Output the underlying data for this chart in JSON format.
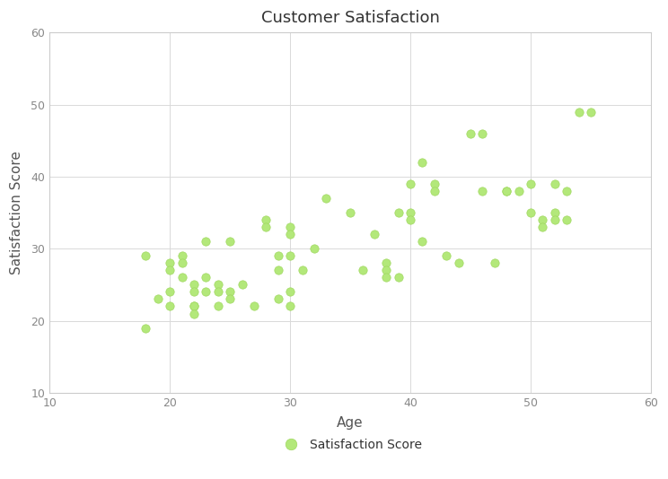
{
  "title": "Customer Satisfaction",
  "xlabel": "Age",
  "ylabel": "Satisfaction Score",
  "legend_label": "Satisfaction Score",
  "xlim": [
    10,
    60
  ],
  "ylim": [
    10,
    60
  ],
  "xticks": [
    10,
    20,
    30,
    40,
    50,
    60
  ],
  "yticks": [
    10,
    20,
    30,
    40,
    50,
    60
  ],
  "marker_color": "#b3e87a",
  "marker_edge_color": "#a0d860",
  "background_color": "#ffffff",
  "grid_color": "#d9d9d9",
  "title_color": "#333333",
  "axis_label_color": "#555555",
  "tick_color": "#888888",
  "spine_color": "#cccccc",
  "marker_size": 45,
  "fig_width": 7.44,
  "fig_height": 5.34,
  "x": [
    18,
    18,
    19,
    20,
    20,
    20,
    20,
    21,
    21,
    21,
    22,
    22,
    22,
    22,
    22,
    23,
    23,
    23,
    24,
    24,
    24,
    25,
    25,
    25,
    26,
    27,
    28,
    28,
    29,
    29,
    29,
    30,
    30,
    30,
    30,
    30,
    31,
    32,
    33,
    35,
    36,
    37,
    38,
    38,
    38,
    39,
    39,
    40,
    40,
    40,
    41,
    41,
    42,
    42,
    43,
    44,
    45,
    46,
    46,
    47,
    48,
    48,
    49,
    50,
    50,
    51,
    51,
    52,
    52,
    52,
    53,
    53,
    54,
    55
  ],
  "y": [
    29,
    19,
    23,
    22,
    28,
    27,
    24,
    29,
    28,
    26,
    25,
    22,
    24,
    22,
    21,
    31,
    26,
    24,
    25,
    24,
    22,
    31,
    24,
    23,
    25,
    22,
    34,
    33,
    27,
    29,
    23,
    33,
    32,
    29,
    24,
    22,
    27,
    30,
    37,
    35,
    27,
    32,
    28,
    27,
    26,
    35,
    26,
    39,
    35,
    34,
    42,
    31,
    39,
    38,
    29,
    28,
    46,
    46,
    38,
    28,
    38,
    38,
    38,
    39,
    35,
    34,
    33,
    39,
    35,
    34,
    34,
    38,
    49,
    49
  ]
}
